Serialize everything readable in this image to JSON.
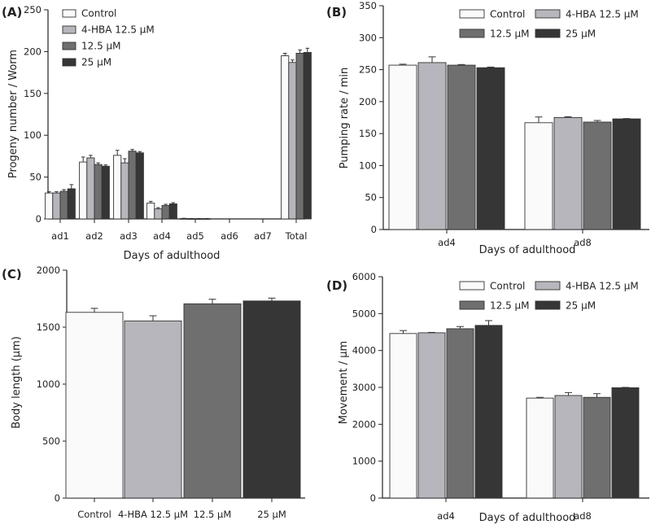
{
  "series_colors": [
    "#fafafa",
    "#b6b6bc",
    "#6f6f6f",
    "#363636"
  ],
  "chart_data": [
    {
      "panel": "(A)",
      "type": "bar",
      "categories": [
        "ad1",
        "ad2",
        "ad3",
        "ad4",
        "ad5",
        "ad6",
        "ad7",
        "Total"
      ],
      "series": [
        {
          "name": "Control",
          "values": [
            31,
            68,
            76,
            19,
            0.5,
            0,
            0,
            195
          ],
          "errors": [
            1.5,
            6,
            6,
            2,
            0.3,
            0,
            0,
            3
          ]
        },
        {
          "name": "4-HBA 12.5 μM",
          "values": [
            31,
            73,
            67,
            12,
            0.3,
            0,
            0,
            187
          ],
          "errors": [
            1.5,
            3,
            5,
            1.5,
            0.2,
            0,
            0,
            3
          ]
        },
        {
          "name": "12.5 μM",
          "values": [
            33,
            65,
            81,
            16,
            0.3,
            0,
            0,
            198
          ],
          "errors": [
            2,
            2,
            2,
            1.5,
            0.2,
            0,
            0,
            4
          ]
        },
        {
          "name": "25 μM",
          "values": [
            36,
            63,
            79,
            18,
            0.3,
            0,
            0,
            199
          ],
          "errors": [
            5,
            1.5,
            1.5,
            1.5,
            0.2,
            0,
            0,
            5
          ]
        }
      ],
      "xlabel": "Days of adulthood",
      "ylabel": "Progeny number / Worm",
      "ylim": [
        0,
        250
      ],
      "yticks": [
        0,
        50,
        100,
        150,
        200,
        250
      ],
      "legend_position": "top-left",
      "grid": false
    },
    {
      "panel": "(B)",
      "type": "bar",
      "categories": [
        "ad4",
        "ad8"
      ],
      "series": [
        {
          "name": "Control",
          "values": [
            257,
            167
          ],
          "errors": [
            1.5,
            9
          ]
        },
        {
          "name": "4-HBA 12.5 μM",
          "values": [
            261,
            175
          ],
          "errors": [
            9,
            1.5
          ]
        },
        {
          "name": "12.5 μM",
          "values": [
            257,
            168
          ],
          "errors": [
            1,
            2.5
          ]
        },
        {
          "name": "25 μM",
          "values": [
            253,
            173
          ],
          "errors": [
            1,
            0.5
          ]
        }
      ],
      "xlabel": "Days of adulthood",
      "ylabel": "Pumping rate / min",
      "ylim": [
        0,
        350
      ],
      "yticks": [
        0,
        50,
        100,
        150,
        200,
        250,
        300,
        350
      ],
      "legend_position": "top-right",
      "grid": false
    },
    {
      "panel": "(C)",
      "type": "bar",
      "categories": [
        "Control",
        "4-HBA 12.5 μM",
        "12.5 μM",
        "25 μM"
      ],
      "values": [
        1630,
        1555,
        1705,
        1730
      ],
      "errors": [
        35,
        45,
        40,
        25
      ],
      "xlabel": "",
      "ylabel": "Body length (μm)",
      "ylim": [
        0,
        2000
      ],
      "yticks": [
        0,
        500,
        1000,
        1500,
        2000
      ],
      "grid": false
    },
    {
      "panel": "(D)",
      "type": "bar",
      "categories": [
        "ad4",
        "ad8"
      ],
      "series": [
        {
          "name": "Control",
          "values": [
            4460,
            2710
          ],
          "errors": [
            80,
            20
          ]
        },
        {
          "name": "4-HBA 12.5 μM",
          "values": [
            4480,
            2780
          ],
          "errors": [
            10,
            80
          ]
        },
        {
          "name": "12.5 μM",
          "values": [
            4590,
            2730
          ],
          "errors": [
            60,
            100
          ]
        },
        {
          "name": "25 μM",
          "values": [
            4680,
            2990
          ],
          "errors": [
            130,
            10
          ]
        }
      ],
      "xlabel": "Days of adulthood",
      "ylabel": "Movement / μm",
      "ylim": [
        0,
        6000
      ],
      "yticks": [
        0,
        1000,
        2000,
        3000,
        4000,
        5000,
        6000
      ],
      "legend_position": "top-right",
      "grid": false
    }
  ]
}
